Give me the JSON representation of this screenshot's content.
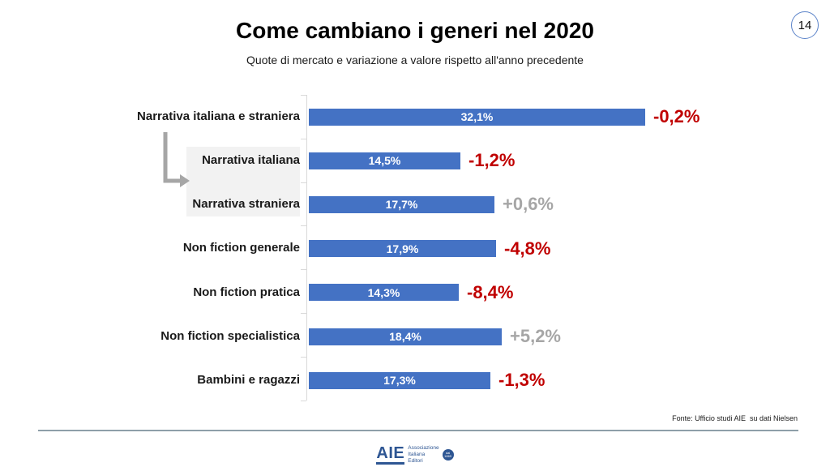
{
  "slide": {
    "page_number": "14"
  },
  "chart_data": {
    "type": "bar",
    "orientation": "horizontal",
    "title": "Come cambiano i generi nel 2020",
    "subtitle": "Quote di mercato e variazione a valore rispetto all'anno precedente",
    "categories": [
      "Narrativa italiana e straniera",
      "Narrativa italiana",
      "Narrativa straniera",
      "Non fiction generale",
      "Non fiction pratica",
      "Non fiction specialistica",
      "Bambini e ragazzi"
    ],
    "values": [
      32.1,
      14.5,
      17.7,
      17.9,
      14.3,
      18.4,
      17.3
    ],
    "value_labels": [
      "32,1%",
      "14,5%",
      "17,7%",
      "17,9%",
      "14,3%",
      "18,4%",
      "17,3%"
    ],
    "changes": [
      -0.2,
      -1.2,
      0.6,
      -4.8,
      -8.4,
      5.2,
      -1.3
    ],
    "change_labels": [
      "-0,2%",
      "-1,2%",
      "+0,6%",
      "-4,8%",
      "-8,4%",
      "+5,2%",
      "-1,3%"
    ],
    "highlighted_categories": [
      "Narrativa italiana",
      "Narrativa straniera"
    ],
    "grid": false,
    "legend": false
  },
  "footer": {
    "source": "Fonte: Ufficio studi AIE  su dati Nielsen"
  },
  "logo": {
    "acronym": "AIE",
    "org_lines": [
      "Associazione",
      "Italiana",
      "Editori"
    ],
    "badge": "dal 1869"
  },
  "colors": {
    "bar": "#4472C4",
    "negative": "#C00000",
    "positive": "#A6A6A6",
    "axis": "#D9D9D9",
    "highlight_box": "#F2F2F2",
    "arrow": "#A6A6A6",
    "footer_line": "#8E9FA9",
    "page_circle_border": "#5B83C9",
    "logo_blue": "#2E5693"
  }
}
